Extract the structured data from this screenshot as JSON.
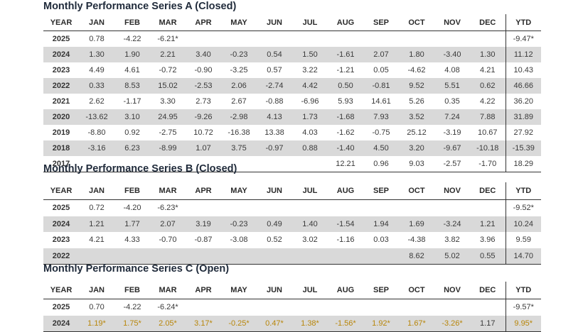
{
  "series_a": {
    "title": "Monthly Performance Series A (Closed)",
    "headers": [
      "YEAR",
      "JAN",
      "FEB",
      "MAR",
      "APR",
      "MAY",
      "JUN",
      "JUL",
      "AUG",
      "SEP",
      "OCT",
      "NOV",
      "DEC",
      "YTD"
    ],
    "rows": [
      {
        "year": "2025",
        "cells": [
          "0.78",
          "-4.22",
          "-6.21*",
          "",
          "",
          "",
          "",
          "",
          "",
          "",
          "",
          ""
        ],
        "ytd": "-9.47*",
        "shaded": false
      },
      {
        "year": "2024",
        "cells": [
          "1.30",
          "1.90",
          "2.21",
          "3.40",
          "-0.23",
          "0.54",
          "1.50",
          "-1.61",
          "2.07",
          "1.80",
          "-3.40",
          "1.30"
        ],
        "ytd": "11.12",
        "shaded": true
      },
      {
        "year": "2023",
        "cells": [
          "4.49",
          "4.61",
          "-0.72",
          "-0.90",
          "-3.25",
          "0.57",
          "3.22",
          "-1.21",
          "0.05",
          "-4.62",
          "4.08",
          "4.21"
        ],
        "ytd": "10.43",
        "shaded": false
      },
      {
        "year": "2022",
        "cells": [
          "0.33",
          "8.53",
          "15.02",
          "-2.53",
          "2.06",
          "-2.74",
          "4.42",
          "0.50",
          "-0.81",
          "9.52",
          "5.51",
          "0.62"
        ],
        "ytd": "46.66",
        "shaded": true
      },
      {
        "year": "2021",
        "cells": [
          "2.62",
          "-1.17",
          "3.30",
          "2.73",
          "2.67",
          "-0.88",
          "-6.96",
          "5.93",
          "14.61",
          "5.26",
          "0.35",
          "4.22"
        ],
        "ytd": "36.20",
        "shaded": false
      },
      {
        "year": "2020",
        "cells": [
          "-13.62",
          "3.10",
          "24.95",
          "-9.26",
          "-2.98",
          "4.13",
          "1.73",
          "-1.68",
          "7.93",
          "3.52",
          "7.24",
          "7.88"
        ],
        "ytd": "31.89",
        "shaded": true
      },
      {
        "year": "2019",
        "cells": [
          "-8.80",
          "0.92",
          "-2.75",
          "10.72",
          "-16.38",
          "13.38",
          "4.03",
          "-1.62",
          "-0.75",
          "25.12",
          "-3.19",
          "10.67"
        ],
        "ytd": "27.92",
        "shaded": false
      },
      {
        "year": "2018",
        "cells": [
          "-3.16",
          "6.23",
          "-8.99",
          "1.07",
          "3.75",
          "-0.97",
          "0.88",
          "-1.40",
          "4.50",
          "3.20",
          "-9.67",
          "-10.18"
        ],
        "ytd": "-15.39",
        "shaded": true
      },
      {
        "year": "2017",
        "cells": [
          "",
          "",
          "",
          "",
          "",
          "",
          "",
          "12.21",
          "0.96",
          "9.03",
          "-2.57",
          "-1.70"
        ],
        "ytd": "18.29",
        "shaded": false
      }
    ]
  },
  "series_b": {
    "title": "Monthly Performance Series B (Closed)",
    "headers": [
      "YEAR",
      "JAN",
      "FEB",
      "MAR",
      "APR",
      "MAY",
      "JUN",
      "JUL",
      "AUG",
      "SEP",
      "OCT",
      "NOV",
      "DEC",
      "YTD"
    ],
    "rows": [
      {
        "year": "2025",
        "cells": [
          "0.72",
          "-4.20",
          "-6.23*",
          "",
          "",
          "",
          "",
          "",
          "",
          "",
          "",
          ""
        ],
        "ytd": "-9.52*",
        "shaded": false
      },
      {
        "year": "2024",
        "cells": [
          "1.21",
          "1.77",
          "2.07",
          "3.19",
          "-0.23",
          "0.49",
          "1.40",
          "-1.54",
          "1.94",
          "1.69",
          "-3.24",
          "1.21"
        ],
        "ytd": "10.24",
        "shaded": true
      },
      {
        "year": "2023",
        "cells": [
          "4.21",
          "4.33",
          "-0.70",
          "-0.87",
          "-3.08",
          "0.52",
          "3.02",
          "-1.16",
          "0.03",
          "-4.38",
          "3.82",
          "3.96"
        ],
        "ytd": "9.59",
        "shaded": false
      },
      {
        "year": "2022",
        "cells": [
          "",
          "",
          "",
          "",
          "",
          "",
          "",
          "",
          "",
          "8.62",
          "5.02",
          "0.55"
        ],
        "ytd": "14.70",
        "shaded": true
      }
    ]
  },
  "series_c": {
    "title": "Monthly Performance Series C (Open)",
    "headers": [
      "YEAR",
      "JAN",
      "FEB",
      "MAR",
      "APR",
      "MAY",
      "JUN",
      "JUL",
      "AUG",
      "SEP",
      "OCT",
      "NOV",
      "DEC",
      "YTD"
    ],
    "rows": [
      {
        "year": "2025",
        "cells": [
          "0.70",
          "-4.22",
          "-6.24*",
          "",
          "",
          "",
          "",
          "",
          "",
          "",
          "",
          ""
        ],
        "ytd": "-9.57*",
        "shaded": false
      },
      {
        "year": "2024",
        "cells": [
          "1.19*",
          "1.75*",
          "2.05*",
          "3.17*",
          "-0.25*",
          "0.47*",
          "1.38*",
          "-1.56*",
          "1.92*",
          "1.67*",
          "-3.26*",
          "1.17"
        ],
        "ytd": "9.95*",
        "shaded": true,
        "gold_upto": 11,
        "ytd_gold": true
      }
    ]
  },
  "colors": {
    "shade": "#d9d9d9",
    "gold": "#b8860b",
    "title": "#1f2a3a"
  }
}
